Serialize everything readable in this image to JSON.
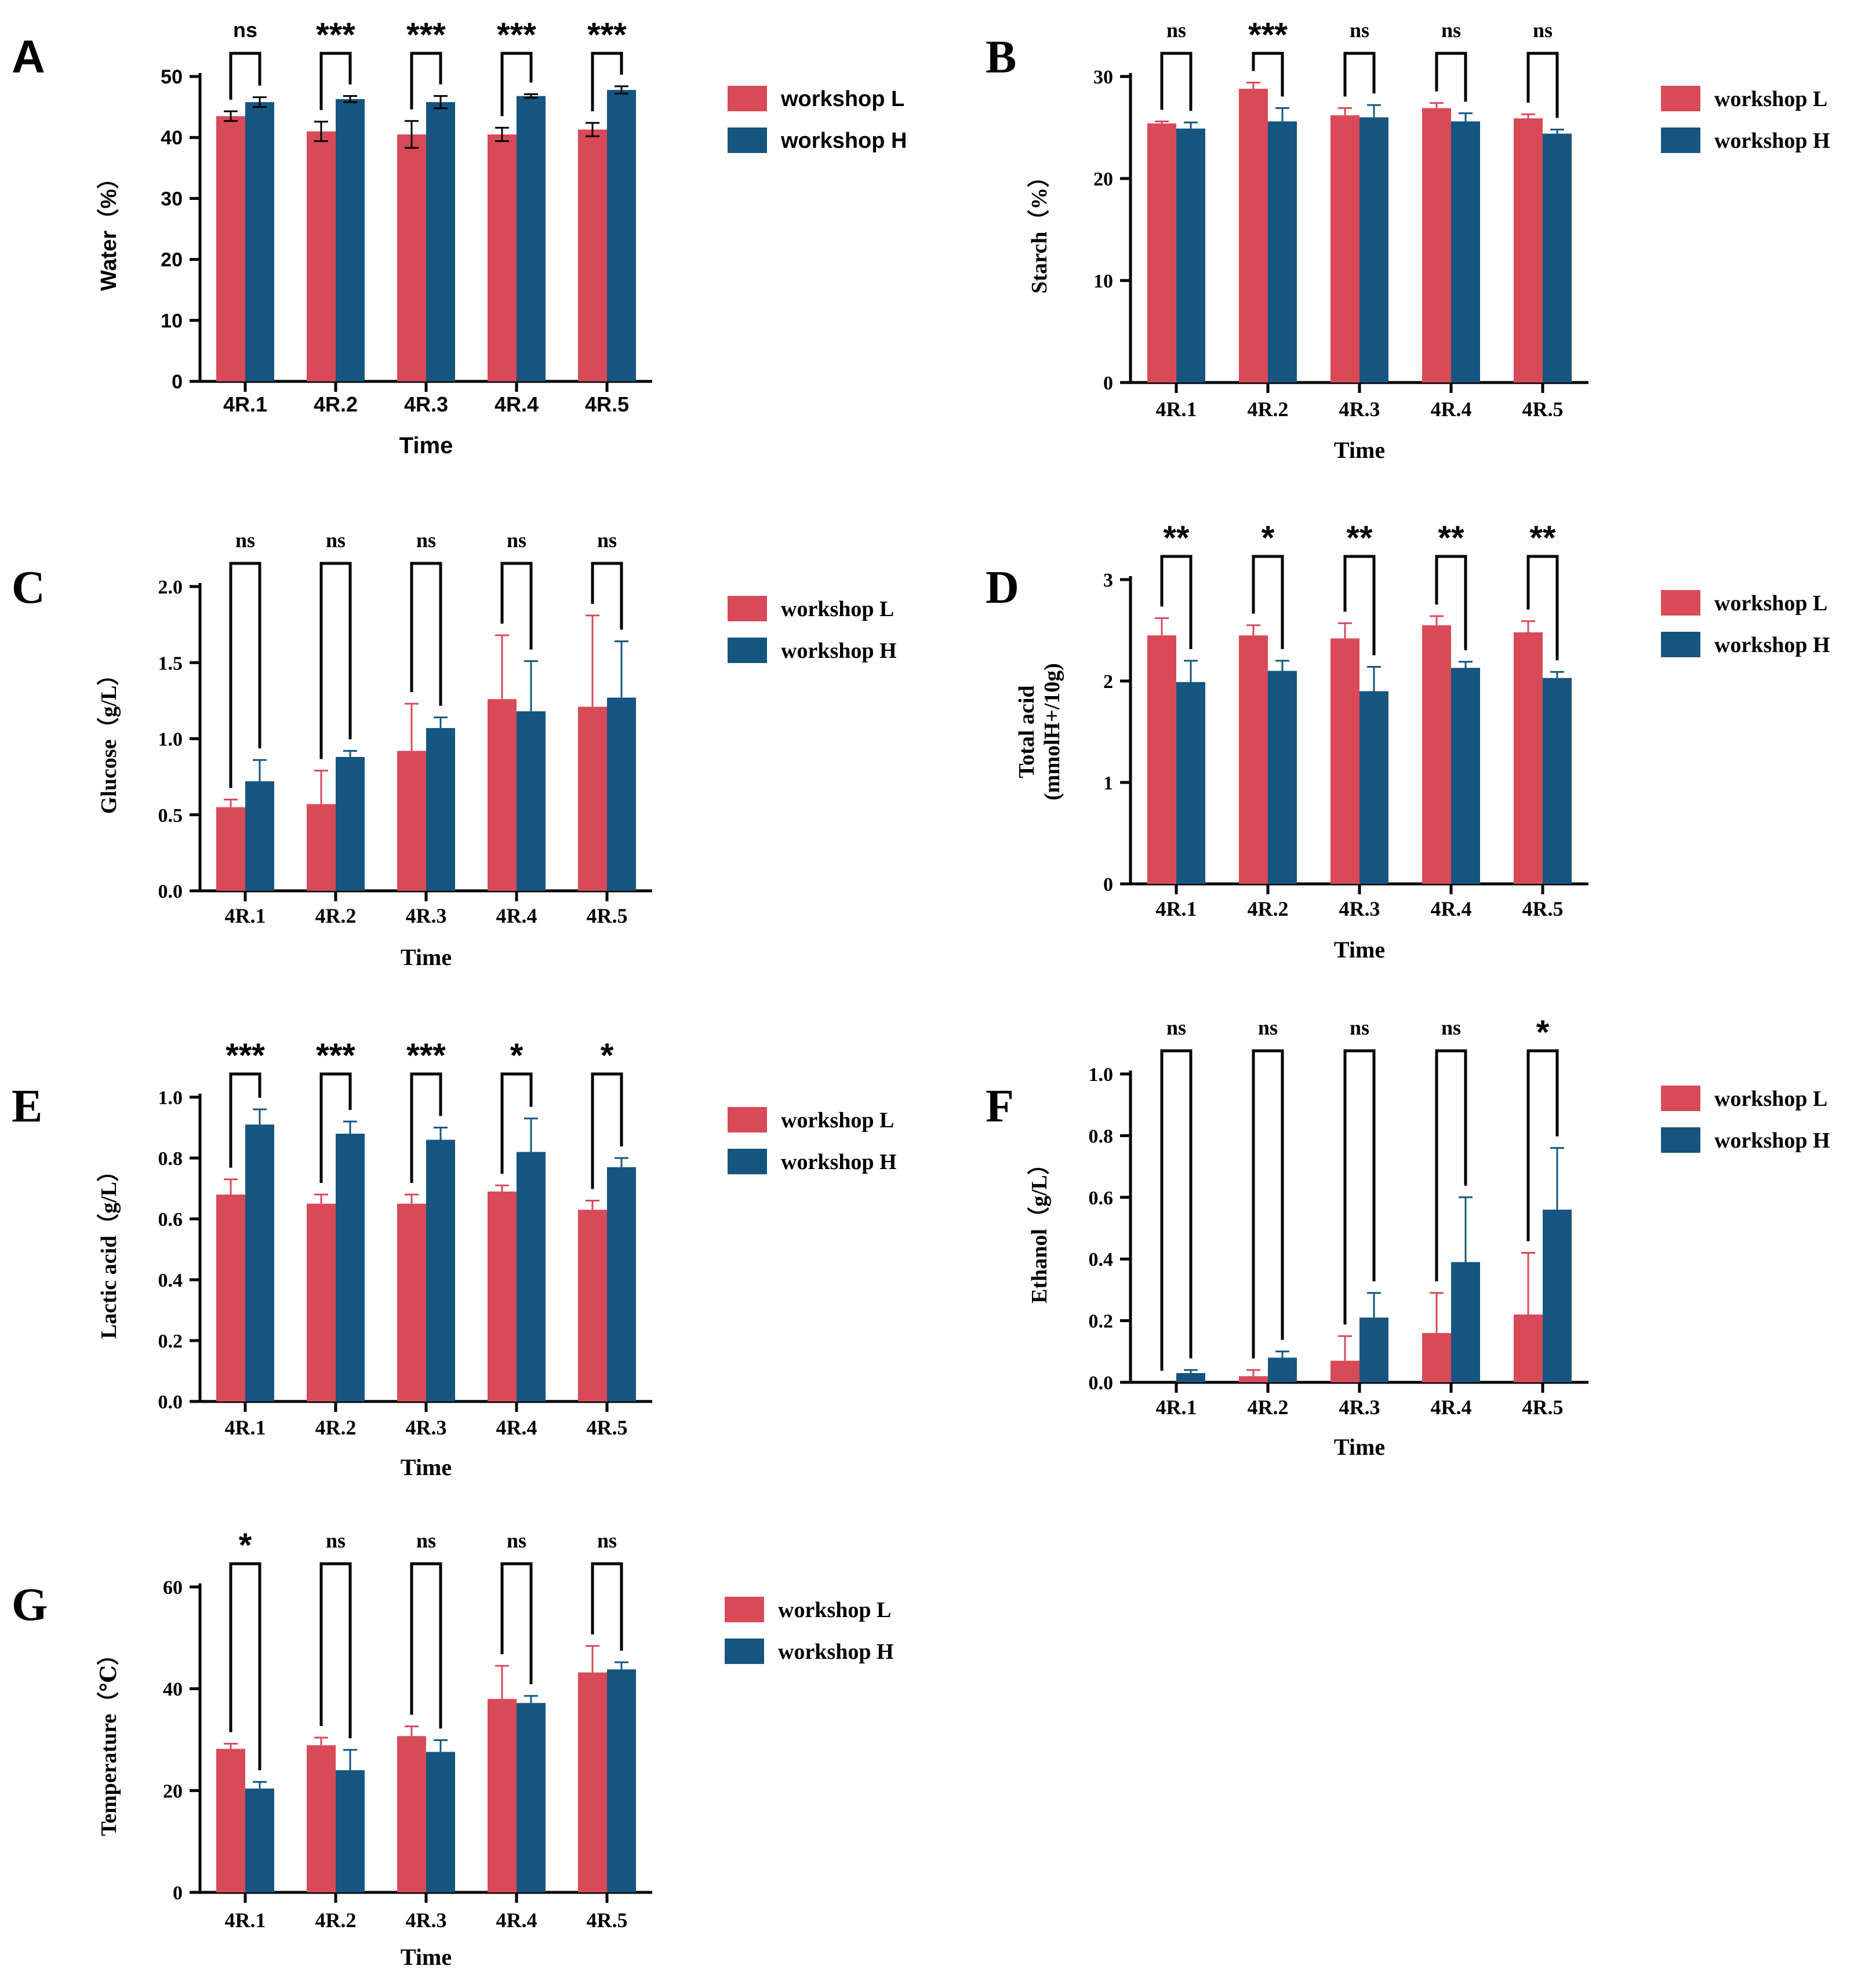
{
  "colors": {
    "workshop_L": "#D94A59",
    "workshop_H": "#16557F",
    "axis": "#000000"
  },
  "legend": {
    "L": "workshop L",
    "H": "workshop H"
  },
  "chart_data": [
    {
      "panel": "A",
      "type": "bar",
      "font": "sans",
      "ylabel": "Water（%）",
      "xlabel": "Time",
      "categories": [
        "4R.1",
        "4R.2",
        "4R.3",
        "4R.4",
        "4R.5"
      ],
      "ylim": [
        0,
        50
      ],
      "yticks": [
        0,
        10,
        20,
        30,
        40,
        50
      ],
      "ytick_labels": [
        "0",
        "10",
        "20",
        "30",
        "40",
        "50"
      ],
      "series": [
        {
          "name": "workshop L",
          "values": [
            43.5,
            41,
            40.5,
            40.5,
            41.3
          ],
          "errors": [
            0.8,
            1.6,
            2.2,
            1.1,
            1.1
          ]
        },
        {
          "name": "workshop H",
          "values": [
            45.8,
            46.3,
            45.8,
            46.8,
            47.8
          ],
          "errors": [
            0.8,
            0.5,
            1.0,
            0.3,
            0.6
          ]
        }
      ],
      "significance": [
        "ns",
        "***",
        "***",
        "***",
        "***"
      ]
    },
    {
      "panel": "B",
      "type": "bar",
      "font": "serif",
      "ylabel": "Starch（%）",
      "xlabel": "Time",
      "categories": [
        "4R.1",
        "4R.2",
        "4R.3",
        "4R.4",
        "4R.5"
      ],
      "ylim": [
        0,
        30
      ],
      "yticks": [
        0,
        10,
        20,
        30
      ],
      "ytick_labels": [
        "0",
        "10",
        "20",
        "30"
      ],
      "series": [
        {
          "name": "workshop L",
          "values": [
            25.4,
            28.8,
            26.2,
            26.9,
            25.9
          ],
          "errors": [
            0.2,
            0.6,
            0.7,
            0.5,
            0.4
          ]
        },
        {
          "name": "workshop H",
          "values": [
            24.9,
            25.6,
            26.0,
            25.6,
            24.4
          ],
          "errors": [
            0.6,
            1.3,
            1.2,
            0.8,
            0.4
          ]
        }
      ],
      "significance": [
        "ns",
        "***",
        "ns",
        "ns",
        "ns"
      ]
    },
    {
      "panel": "C",
      "type": "bar",
      "font": "serif",
      "ylabel": "Glucose（g/L）",
      "xlabel": "Time",
      "categories": [
        "4R.1",
        "4R.2",
        "4R.3",
        "4R.4",
        "4R.5"
      ],
      "ylim": [
        0,
        2.0
      ],
      "yticks": [
        0,
        0.5,
        1.0,
        1.5,
        2.0
      ],
      "ytick_labels": [
        "0.0",
        "0.5",
        "1.0",
        "1.5",
        "2.0"
      ],
      "series": [
        {
          "name": "workshop L",
          "values": [
            0.55,
            0.57,
            0.92,
            1.26,
            1.21
          ],
          "errors": [
            0.05,
            0.22,
            0.31,
            0.42,
            0.6
          ]
        },
        {
          "name": "workshop H",
          "values": [
            0.72,
            0.88,
            1.07,
            1.18,
            1.27
          ],
          "errors": [
            0.14,
            0.04,
            0.07,
            0.33,
            0.37
          ]
        }
      ],
      "significance": [
        "ns",
        "ns",
        "ns",
        "ns",
        "ns"
      ]
    },
    {
      "panel": "D",
      "type": "bar",
      "font": "serif",
      "ylabel": "Total acid",
      "ylabel2": "(mmolH+/10g)",
      "xlabel": "Time",
      "categories": [
        "4R.1",
        "4R.2",
        "4R.3",
        "4R.4",
        "4R.5"
      ],
      "ylim": [
        0,
        3
      ],
      "yticks": [
        0,
        1,
        2,
        3
      ],
      "ytick_labels": [
        "0",
        "1",
        "2",
        "3"
      ],
      "series": [
        {
          "name": "workshop L",
          "values": [
            2.45,
            2.45,
            2.42,
            2.55,
            2.48
          ],
          "errors": [
            0.17,
            0.1,
            0.15,
            0.09,
            0.11
          ]
        },
        {
          "name": "workshop H",
          "values": [
            1.99,
            2.1,
            1.9,
            2.13,
            2.03
          ],
          "errors": [
            0.21,
            0.1,
            0.24,
            0.06,
            0.06
          ]
        }
      ],
      "significance": [
        "**",
        "*",
        "**",
        "**",
        "**"
      ]
    },
    {
      "panel": "E",
      "type": "bar",
      "font": "serif",
      "ylabel": "Lactic acid（g/L）",
      "xlabel": "Time",
      "categories": [
        "4R.1",
        "4R.2",
        "4R.3",
        "4R.4",
        "4R.5"
      ],
      "ylim": [
        0,
        1.0
      ],
      "yticks": [
        0,
        0.2,
        0.4,
        0.6,
        0.8,
        1.0
      ],
      "ytick_labels": [
        "0.0",
        "0.2",
        "0.4",
        "0.6",
        "0.8",
        "1.0"
      ],
      "series": [
        {
          "name": "workshop L",
          "values": [
            0.68,
            0.65,
            0.65,
            0.69,
            0.63
          ],
          "errors": [
            0.05,
            0.03,
            0.03,
            0.02,
            0.03
          ]
        },
        {
          "name": "workshop H",
          "values": [
            0.91,
            0.88,
            0.86,
            0.82,
            0.77
          ],
          "errors": [
            0.05,
            0.04,
            0.04,
            0.11,
            0.03
          ]
        }
      ],
      "significance": [
        "***",
        "***",
        "***",
        "*",
        "*"
      ]
    },
    {
      "panel": "F",
      "type": "bar",
      "font": "serif",
      "ylabel": "Ethanol（g/L）",
      "xlabel": "Time",
      "categories": [
        "4R.1",
        "4R.2",
        "4R.3",
        "4R.4",
        "4R.5"
      ],
      "ylim": [
        0,
        1.0
      ],
      "yticks": [
        0,
        0.2,
        0.4,
        0.6,
        0.8,
        1.0
      ],
      "ytick_labels": [
        "0.0",
        "0.2",
        "0.4",
        "0.6",
        "0.8",
        "1.0"
      ],
      "series": [
        {
          "name": "workshop L",
          "values": [
            0.0,
            0.02,
            0.07,
            0.16,
            0.22
          ],
          "errors": [
            0.0,
            0.02,
            0.08,
            0.13,
            0.2
          ]
        },
        {
          "name": "workshop H",
          "values": [
            0.03,
            0.08,
            0.21,
            0.39,
            0.56
          ],
          "errors": [
            0.01,
            0.02,
            0.08,
            0.21,
            0.2
          ]
        }
      ],
      "significance": [
        "ns",
        "ns",
        "ns",
        "ns",
        "*"
      ]
    },
    {
      "panel": "G",
      "type": "bar",
      "font": "serif",
      "ylabel": "Temperature（℃）",
      "xlabel": "Time",
      "categories": [
        "4R.1",
        "4R.2",
        "4R.3",
        "4R.4",
        "4R.5"
      ],
      "ylim": [
        0,
        60
      ],
      "yticks": [
        0,
        20,
        40,
        60
      ],
      "ytick_labels": [
        "0",
        "20",
        "40",
        "60"
      ],
      "series": [
        {
          "name": "workshop L",
          "values": [
            28.2,
            28.9,
            30.7,
            38.0,
            43.2
          ],
          "errors": [
            1.0,
            1.5,
            1.9,
            6.5,
            5.2
          ]
        },
        {
          "name": "workshop H",
          "values": [
            20.4,
            24.0,
            27.6,
            37.2,
            43.8
          ],
          "errors": [
            1.3,
            4.0,
            2.3,
            1.4,
            1.4
          ]
        }
      ],
      "significance": [
        "*",
        "ns",
        "ns",
        "ns",
        "ns"
      ]
    }
  ]
}
